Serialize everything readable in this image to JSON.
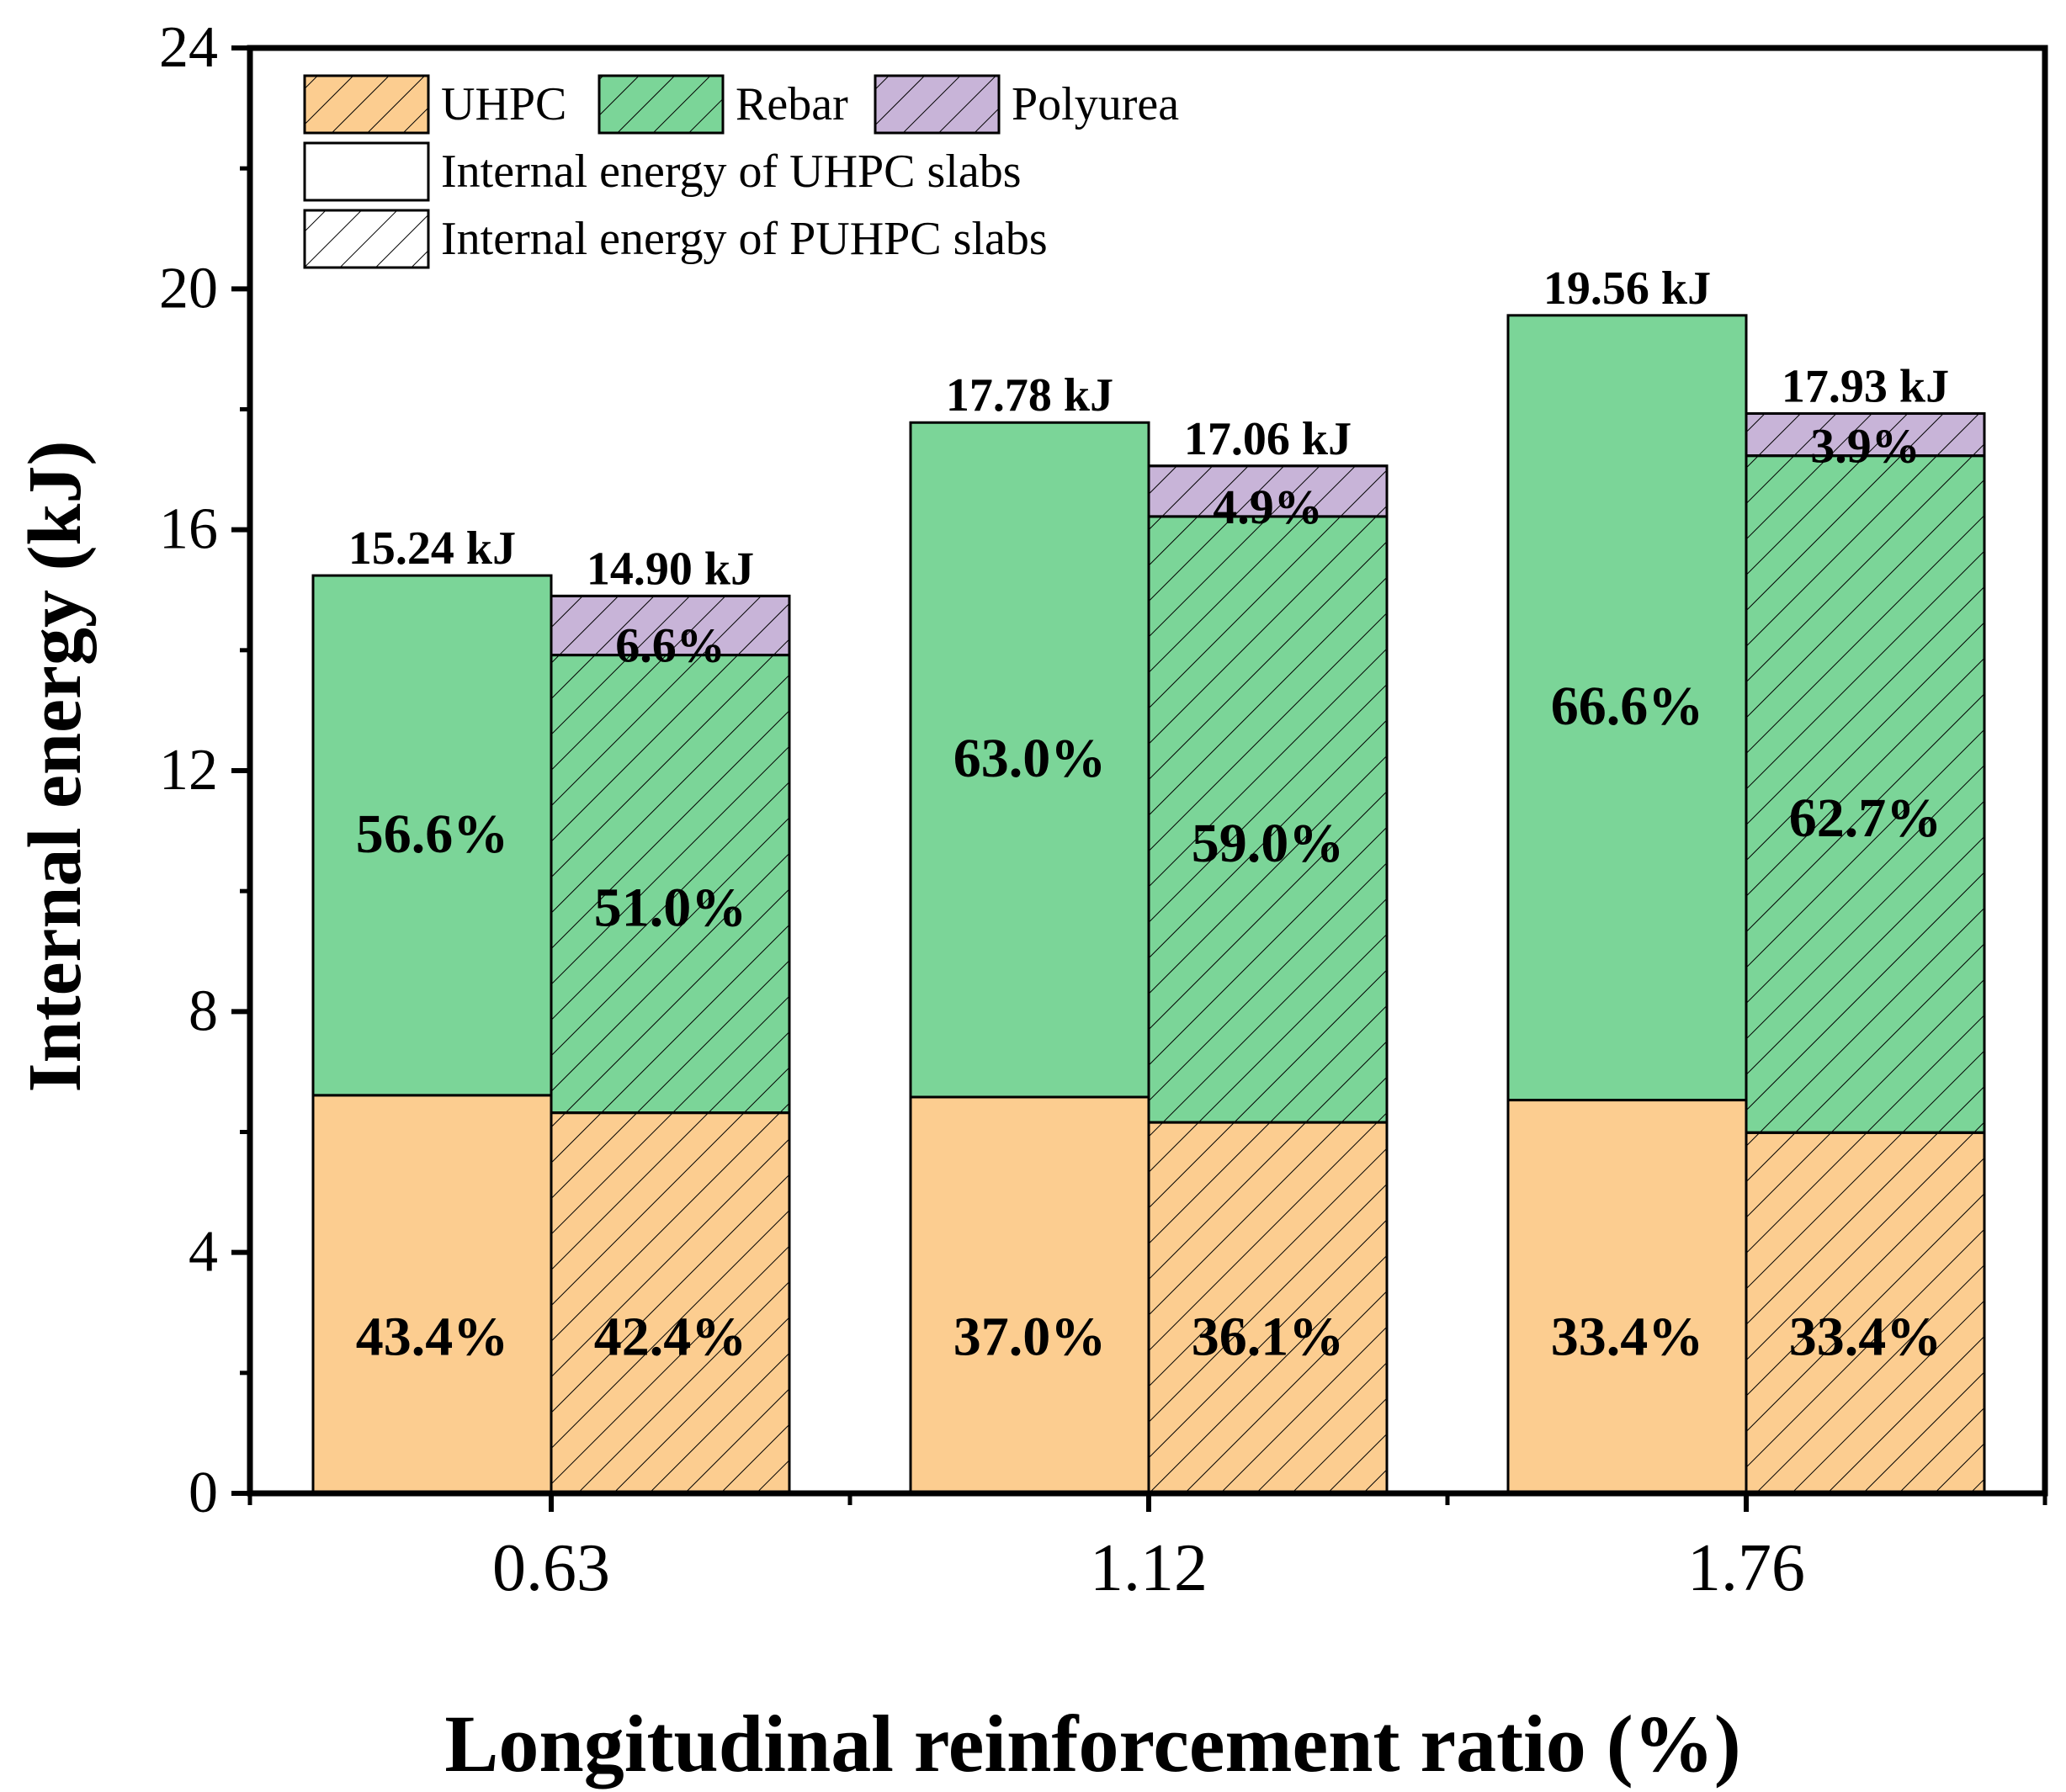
{
  "chart_data": {
    "type": "bar",
    "subtype": "stacked-grouped",
    "title": "",
    "xlabel": "Longitudinal reinforcement ratio (%)",
    "ylabel": "Internal energy (kJ)",
    "ylim": [
      0,
      24
    ],
    "yticks": [
      "0",
      "4",
      "8",
      "12",
      "16",
      "20",
      "24"
    ],
    "categories": [
      "0.63",
      "1.12",
      "1.76"
    ],
    "groups": [
      {
        "category": "0.63",
        "bars": [
          {
            "slab": "UHPC",
            "total": 15.24,
            "total_label": "15.24 kJ",
            "segments": [
              {
                "component": "UHPC",
                "value": 6.61,
                "label": "43.4%"
              },
              {
                "component": "Rebar",
                "value": 8.63,
                "label": "56.6%"
              }
            ]
          },
          {
            "slab": "PUHPC",
            "total": 14.9,
            "total_label": "14.90 kJ",
            "segments": [
              {
                "component": "UHPC",
                "value": 6.32,
                "label": "42.4%"
              },
              {
                "component": "Rebar",
                "value": 7.6,
                "label": "51.0%"
              },
              {
                "component": "Polyurea",
                "value": 0.98,
                "label": "6.6%"
              }
            ]
          }
        ]
      },
      {
        "category": "1.12",
        "bars": [
          {
            "slab": "UHPC",
            "total": 17.78,
            "total_label": "17.78 kJ",
            "segments": [
              {
                "component": "UHPC",
                "value": 6.58,
                "label": "37.0%"
              },
              {
                "component": "Rebar",
                "value": 11.2,
                "label": "63.0%"
              }
            ]
          },
          {
            "slab": "PUHPC",
            "total": 17.06,
            "total_label": "17.06 kJ",
            "segments": [
              {
                "component": "UHPC",
                "value": 6.16,
                "label": "36.1%"
              },
              {
                "component": "Rebar",
                "value": 10.06,
                "label": "59.0%"
              },
              {
                "component": "Polyurea",
                "value": 0.84,
                "label": "4.9%"
              }
            ]
          }
        ]
      },
      {
        "category": "1.76",
        "bars": [
          {
            "slab": "UHPC",
            "total": 19.56,
            "total_label": "19.56 kJ",
            "segments": [
              {
                "component": "UHPC",
                "value": 6.53,
                "label": "33.4%"
              },
              {
                "component": "Rebar",
                "value": 13.03,
                "label": "66.6%"
              }
            ]
          },
          {
            "slab": "PUHPC",
            "total": 17.93,
            "total_label": "17.93 kJ",
            "segments": [
              {
                "component": "UHPC",
                "value": 5.99,
                "label": "33.4%"
              },
              {
                "component": "Rebar",
                "value": 11.24,
                "label": "62.7%"
              },
              {
                "component": "Polyurea",
                "value": 0.7,
                "label": "3.9%"
              }
            ]
          }
        ]
      }
    ],
    "legend": {
      "placement": "top-left",
      "components": [
        {
          "name": "UHPC",
          "color": "#FCCD90"
        },
        {
          "name": "Rebar",
          "color": "#7BD598"
        },
        {
          "name": "Polyurea",
          "color": "#C8B4D8"
        }
      ],
      "slab_types": [
        {
          "name": "Internal energy of UHPC slabs",
          "pattern": "none"
        },
        {
          "name": "Internal energy of PUHPC slabs",
          "pattern": "hatch"
        }
      ]
    },
    "colors": {
      "UHPC": "#FCCD90",
      "Rebar": "#7BD598",
      "Polyurea": "#C8B4D8"
    }
  }
}
